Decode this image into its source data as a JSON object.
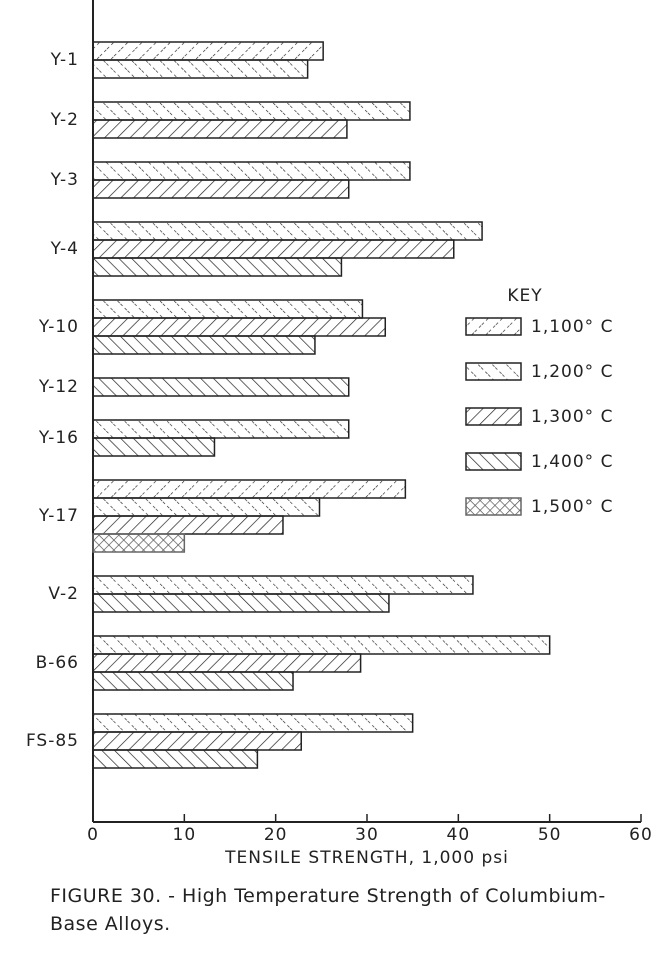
{
  "chart_data": {
    "type": "bar",
    "orientation": "horizontal",
    "title": "FIGURE 30. - High Temperature Strength of Columbium-Base Alloys.",
    "xlabel": "TENSILE STRENGTH, 1,000 psi",
    "legend_title": "KEY",
    "categories": [
      "Y-1",
      "Y-2",
      "Y-3",
      "Y-4",
      "Y-10",
      "Y-12",
      "Y-16",
      "Y-17",
      "V-2",
      "B-66",
      "FS-85"
    ],
    "series": [
      {
        "name": "1,100° C",
        "color": "#222222",
        "values": [
          25.2,
          null,
          null,
          null,
          null,
          null,
          null,
          34.2,
          null,
          null,
          null
        ]
      },
      {
        "name": "1,200° C",
        "color": "#222222",
        "values": [
          23.5,
          34.7,
          34.7,
          42.6,
          29.5,
          null,
          28,
          24.8,
          41.6,
          50,
          35
        ]
      },
      {
        "name": "1,300° C",
        "color": "#222222",
        "values": [
          null,
          27.8,
          28,
          39.5,
          32,
          null,
          null,
          20.8,
          null,
          29.3,
          22.8
        ]
      },
      {
        "name": "1,400° C",
        "color": "#222222",
        "values": [
          null,
          null,
          null,
          27.2,
          24.3,
          28,
          13.3,
          null,
          32.4,
          21.9,
          18
        ]
      },
      {
        "name": "1,500° C",
        "color": "#666666",
        "values": [
          null,
          null,
          null,
          null,
          null,
          null,
          null,
          10,
          null,
          null,
          null
        ]
      }
    ],
    "xlim": [
      0,
      60
    ],
    "xticks": [
      0,
      10,
      20,
      30,
      40,
      50,
      60
    ],
    "legend": "right"
  }
}
